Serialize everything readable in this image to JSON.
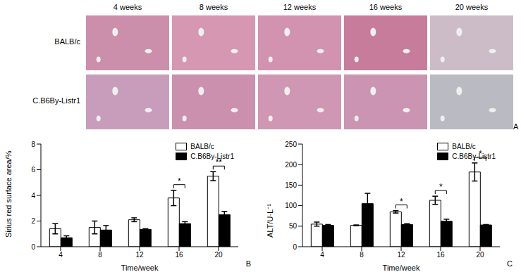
{
  "panel_a": {
    "label": "A",
    "columns": [
      "4 weeks",
      "8 weeks",
      "12 weeks",
      "16 weeks",
      "20 weeks"
    ],
    "rows": [
      "BALB/c",
      "C.B6By-Listr1"
    ]
  },
  "chart_data": [
    {
      "type": "bar",
      "annotations": [
        "B"
      ],
      "xlabel": "Time/week",
      "ylabel": "Sirius red surface area/%",
      "categories": [
        "4",
        "8",
        "12",
        "16",
        "20"
      ],
      "series": [
        {
          "name": "BALB/c",
          "color": "#ffffff",
          "values": [
            1.4,
            1.5,
            2.1,
            3.8,
            5.5
          ],
          "errors": [
            0.4,
            0.5,
            0.15,
            0.6,
            0.35
          ]
        },
        {
          "name": "C.B6By-Listr1",
          "color": "#000000",
          "values": [
            0.7,
            1.3,
            1.35,
            1.8,
            2.5
          ],
          "errors": [
            0.15,
            0.35,
            0.05,
            0.15,
            0.25
          ]
        }
      ],
      "significance": [
        null,
        null,
        null,
        "*",
        "**"
      ],
      "ylim": [
        0,
        8
      ],
      "yticks": [
        0,
        2,
        4,
        6,
        8
      ],
      "legend": "upper right"
    },
    {
      "type": "bar",
      "annotations": [
        "C"
      ],
      "xlabel": "Time/week",
      "ylabel": "ALT/U·L⁻¹",
      "categories": [
        "4",
        "8",
        "12",
        "16",
        "20"
      ],
      "series": [
        {
          "name": "BALB/c",
          "color": "#ffffff",
          "values": [
            55,
            52,
            85,
            113,
            182
          ],
          "errors": [
            5,
            1,
            3,
            10,
            22
          ]
        },
        {
          "name": "C.B6By-Listr1",
          "color": "#000000",
          "values": [
            52,
            105,
            54,
            62,
            53
          ],
          "errors": [
            2,
            25,
            2,
            5,
            1
          ]
        }
      ],
      "significance": [
        null,
        null,
        "*",
        "*",
        "*"
      ],
      "ylim": [
        0,
        250
      ],
      "yticks": [
        0,
        50,
        100,
        150,
        200,
        250
      ],
      "legend": "upper right"
    }
  ]
}
